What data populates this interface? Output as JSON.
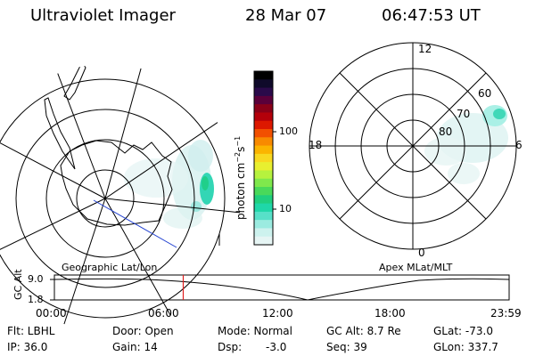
{
  "header": {
    "instrument": "Ultraviolet Imager",
    "date": "28 Mar 07",
    "time": "06:47:53 UT"
  },
  "colorbar": {
    "label_main": "photon cm",
    "label_exp1": "−2",
    "label_mid": "s",
    "label_exp2": "−1",
    "ticks": [
      "100",
      "10"
    ],
    "colors": [
      "#000000",
      "#0f0a2a",
      "#2a0a4a",
      "#5a003a",
      "#8a0018",
      "#b4000a",
      "#dd1800",
      "#f25000",
      "#f88a00",
      "#fbb400",
      "#f8d820",
      "#e8ef30",
      "#b6f23e",
      "#7fe84c",
      "#49d95a",
      "#20cf7e",
      "#1fd7a8",
      "#57e0c8",
      "#9bebe0",
      "#cdf2ee",
      "#e6f5f4"
    ]
  },
  "left_map": {
    "caption": "Geographic Lat/Lon"
  },
  "right_map": {
    "caption": "Apex MLat/MLT",
    "mlt_labels": [
      "12",
      "6",
      "0",
      "18"
    ],
    "lat_labels": [
      "60",
      "70",
      "80"
    ]
  },
  "timeline": {
    "axis_label": "GC Alt",
    "y_labels": [
      "9.0",
      "1.8"
    ],
    "x_labels": [
      "00:00",
      "06:00",
      "12:00",
      "18:00",
      "23:59"
    ],
    "marker_time": "06:47:53",
    "marker_color": "#e02020"
  },
  "info": {
    "flt": "Flt: LBHL",
    "door": "Door: Open",
    "mode": "Mode: Normal",
    "gc_alt": "GC Alt: 8.7 Re",
    "glat": "GLat: -73.0",
    "ip": "IP: 36.0",
    "gain": "Gain: 14",
    "dsp_label": "Dsp:",
    "dsp_value": "-3.0",
    "seq": "Seq: 39",
    "glon": "GLon: 337.7"
  }
}
